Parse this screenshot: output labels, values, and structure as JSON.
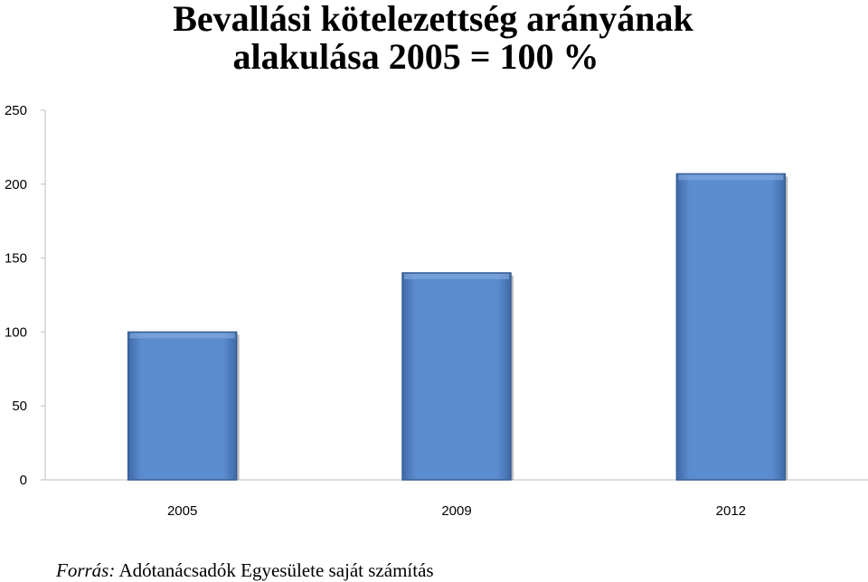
{
  "chart_data": {
    "type": "bar",
    "title_line1": "Bevallási kötelezettség arányának",
    "title_line2": "alakulása 2005 = 100 %",
    "categories": [
      "2005",
      "2009",
      "2012"
    ],
    "values": [
      100,
      140,
      207
    ],
    "ylim": [
      0,
      250
    ],
    "yticks": [
      0,
      50,
      100,
      150,
      200,
      250
    ],
    "xlabel": "",
    "ylabel": "",
    "grid": false,
    "legend": "none",
    "bar_color": "#5B8CCF",
    "bar_edge_color": "#3A5F94",
    "axis_color": "#BFBFBF"
  },
  "source": {
    "label": "Forrás:",
    "text": "Adótanácsadók Egyesülete saját számítás"
  }
}
